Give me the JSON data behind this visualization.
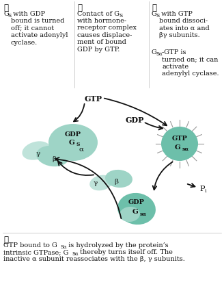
{
  "background_color": "#ffffff",
  "blob_main": "#6dbfaa",
  "blob_light": "#9ed4c6",
  "blob_lighter": "#bfe3da",
  "text_color": "#111111",
  "arrow_color": "#111111",
  "divider_color": "#bbbbbb",
  "spike_color": "#999999",
  "s1_num": "①",
  "s1_text_line1": "G",
  "s1_text_sub1": "S",
  "s1_text_rest": " with GDP\nbound is turned\noff; it cannot\nactivate adenylyl\ncyclase.",
  "s2_num": "②",
  "s2_text_line1": "Contact of G",
  "s2_text_sub2": "S",
  "s2_text_rest": "\nwith hormone-\nreceptor complex\ncauses displace-\nment of bound\nGDP by GTP.",
  "s3_num": "③",
  "s3_text_line1": "G",
  "s3_text_sub3": "S",
  "s3_text_rest": " with GTP\nbound dissoci-\nates into α and\nβγ subunits.\nG",
  "s3_text_sub3b": "Sα",
  "s3_text_rest2": "-GTP is\nturned on; it can\nactivate\nadenylyl cyclase.",
  "s4_num": "④",
  "s4_line1": "GTP bound to G",
  "s4_sub4": "Sα",
  "s4_rest1": " is hydrolyzed by the protein’s",
  "s4_line2": "intrinsic GTPase; G",
  "s4_sub4b": "Sα",
  "s4_rest2": " thereby turns itself off. The",
  "s4_line3": "inactive α subunit reassociates with the β, γ subunits."
}
